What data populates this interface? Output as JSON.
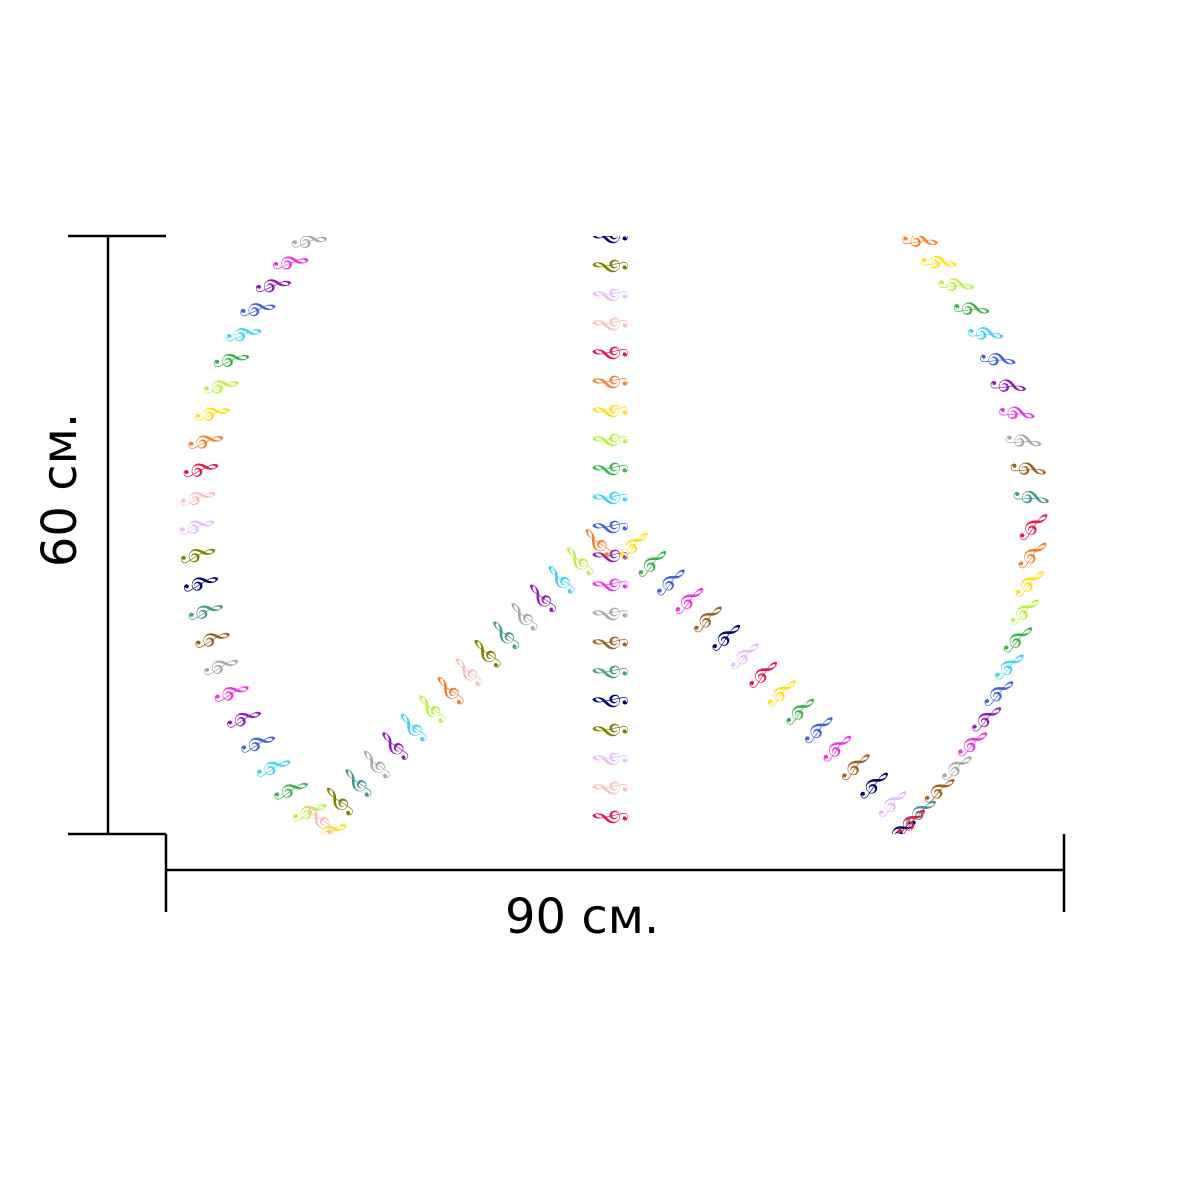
{
  "product_image": {
    "motif": "peace-sign-of-treble-clefs",
    "palette": [
      "#e6194b",
      "#f58231",
      "#ffe119",
      "#bfef45",
      "#3cb44b",
      "#42d4f4",
      "#4363d8",
      "#911eb4",
      "#f032e6",
      "#a9a9a9",
      "#9a6324",
      "#469990",
      "#000075",
      "#808000",
      "#e6beff",
      "#fabebe"
    ]
  },
  "dimensions": {
    "width_label": "90 см.",
    "height_label": "60 см."
  },
  "colors": {
    "line": "#000000",
    "background": "#ffffff"
  }
}
